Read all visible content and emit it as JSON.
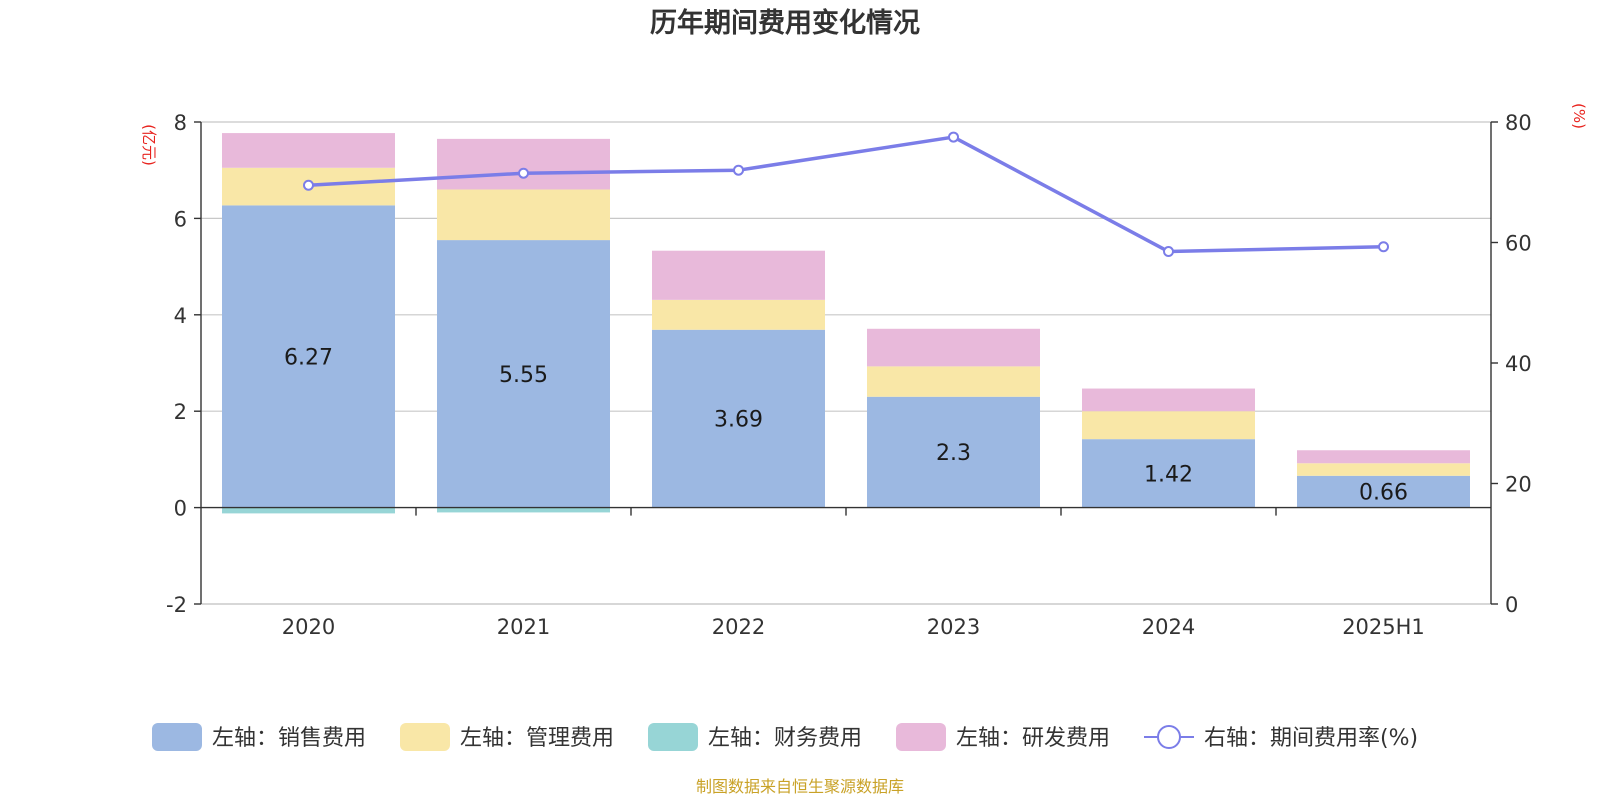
{
  "chart_data": {
    "type": "bar",
    "title": "历年期间费用变化情况",
    "categories": [
      "2020",
      "2021",
      "2022",
      "2023",
      "2024",
      "2025H1"
    ],
    "left_axis": {
      "unit": "(亿元)",
      "ylim": [
        -2,
        8
      ],
      "ticks": [
        "-2",
        "0",
        "2",
        "4",
        "6",
        "8"
      ]
    },
    "right_axis": {
      "unit": "(%)",
      "ylim": [
        0,
        80
      ],
      "ticks": [
        "0",
        "20",
        "40",
        "60",
        "80"
      ]
    },
    "series": [
      {
        "name": "左轴：销售费用",
        "kind": "bar",
        "axis": "left",
        "color": "#9cb8e2",
        "values": [
          6.27,
          5.55,
          3.69,
          2.3,
          1.42,
          0.66
        ],
        "show_labels": true
      },
      {
        "name": "左轴：管理费用",
        "kind": "bar",
        "axis": "left",
        "color": "#f9e7a7",
        "values": [
          0.78,
          1.05,
          0.62,
          0.63,
          0.58,
          0.26
        ]
      },
      {
        "name": "左轴：财务费用",
        "kind": "bar",
        "axis": "left",
        "color": "#97d5d6",
        "values": [
          -0.12,
          -0.1,
          0.0,
          0.0,
          0.0,
          0.0
        ]
      },
      {
        "name": "左轴：研发费用",
        "kind": "bar",
        "axis": "left",
        "color": "#e8b9da",
        "values": [
          0.72,
          1.05,
          1.02,
          0.78,
          0.47,
          0.27
        ]
      },
      {
        "name": "右轴：期间费用率(%)",
        "kind": "line",
        "axis": "right",
        "color": "#7b7de8",
        "values": [
          69.5,
          71.5,
          72.0,
          77.5,
          58.5,
          59.3
        ]
      }
    ],
    "grid": true,
    "legend_position": "bottom",
    "source": "制图数据来自恒生聚源数据库"
  }
}
